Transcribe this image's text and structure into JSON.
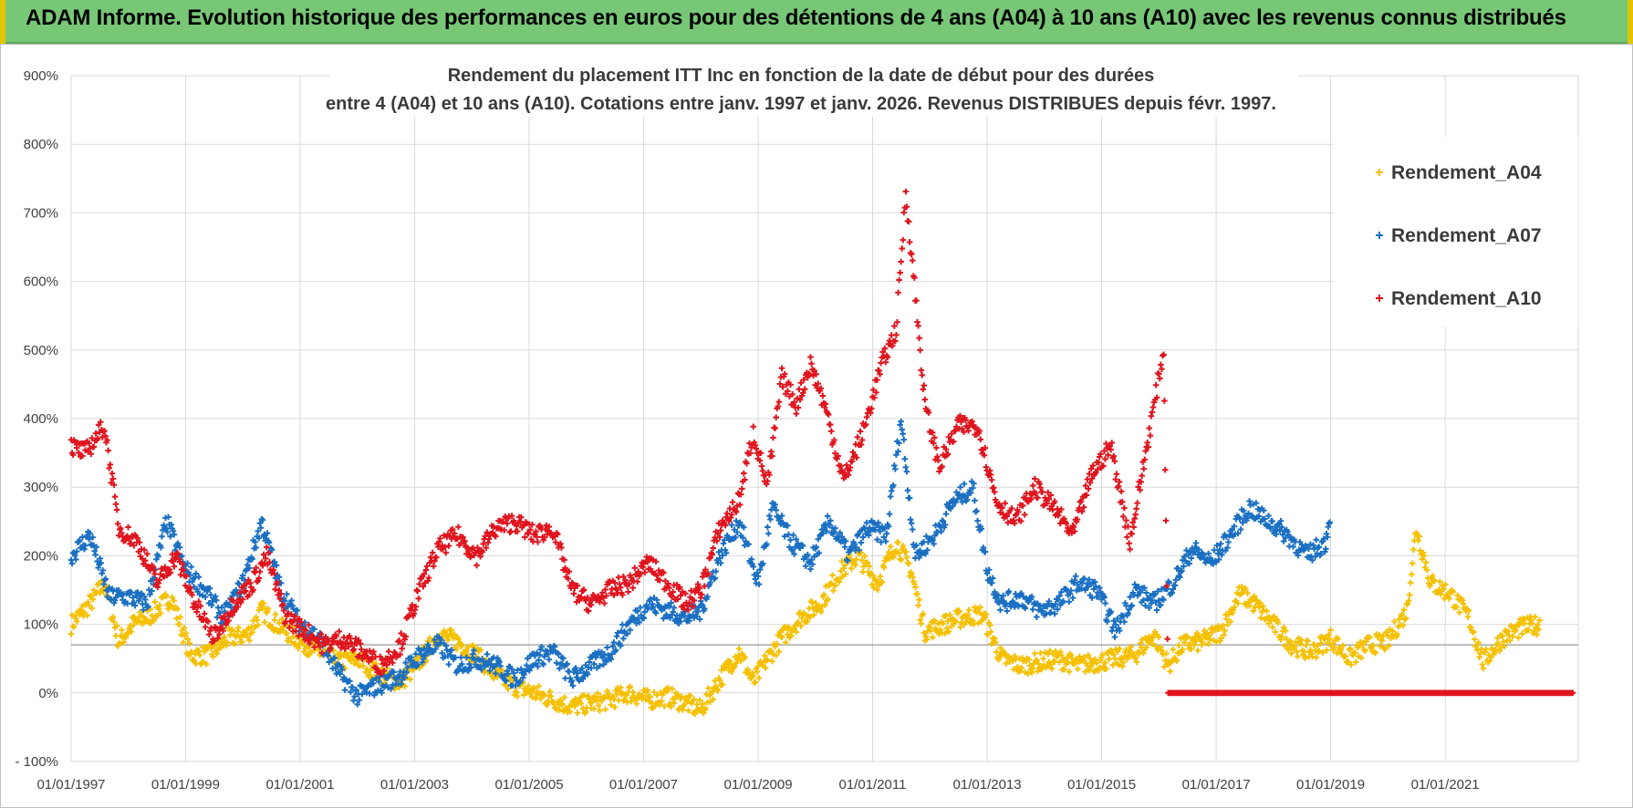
{
  "banner": {
    "text": "ADAM Informe. Evolution historique des performances en euros pour des détentions de 4 ans (A04) à 10 ans (A10) avec les revenus connus distribués"
  },
  "chart_data": {
    "type": "scatter",
    "title_lines": [
      "Rendement du placement ITT Inc en fonction de la date de début pour des durées",
      "entre 4 (A04) et 10 ans (A10). Cotations entre janv. 1997 et janv. 2026. Revenus DISTRIBUES depuis févr. 1997."
    ],
    "xlabel": "",
    "ylabel": "",
    "xlim": [
      "1997-01-01",
      "2023-04-30"
    ],
    "ylim": [
      -100,
      900
    ],
    "y_ticks": [
      "- 100%",
      "0%",
      "100%",
      "200%",
      "300%",
      "400%",
      "500%",
      "600%",
      "700%",
      "800%",
      "900%"
    ],
    "x_ticks": [
      "01/01/1997",
      "01/01/1999",
      "01/01/2001",
      "01/01/2003",
      "01/01/2005",
      "01/01/2007",
      "01/01/2009",
      "01/01/2011",
      "01/01/2013",
      "01/01/2015",
      "01/01/2017",
      "01/01/2019",
      "01/01/2021"
    ],
    "grid": true,
    "legend_position": "top-right",
    "marker": "+",
    "series": [
      {
        "name": "Rendement_A04",
        "color": "#f5c000",
        "points": [
          [
            "1997-01-01",
            100
          ],
          [
            "1997-05-01",
            130
          ],
          [
            "1997-08-01",
            160
          ],
          [
            "1997-11-01",
            75
          ],
          [
            "1998-02-01",
            100
          ],
          [
            "1998-06-01",
            115
          ],
          [
            "1998-10-01",
            140
          ],
          [
            "1999-02-01",
            55
          ],
          [
            "1999-06-01",
            55
          ],
          [
            "1999-10-01",
            80
          ],
          [
            "2000-02-01",
            85
          ],
          [
            "2000-05-01",
            120
          ],
          [
            "2000-09-01",
            95
          ],
          [
            "2001-01-01",
            75
          ],
          [
            "2001-05-01",
            60
          ],
          [
            "2001-09-01",
            45
          ],
          [
            "2002-01-01",
            50
          ],
          [
            "2002-05-01",
            30
          ],
          [
            "2002-10-01",
            15
          ],
          [
            "2003-02-01",
            45
          ],
          [
            "2003-06-01",
            85
          ],
          [
            "2003-10-01",
            75
          ],
          [
            "2004-02-01",
            55
          ],
          [
            "2004-06-01",
            25
          ],
          [
            "2004-10-01",
            10
          ],
          [
            "2005-02-01",
            0
          ],
          [
            "2005-06-01",
            -10
          ],
          [
            "2005-10-01",
            -20
          ],
          [
            "2006-02-01",
            -15
          ],
          [
            "2006-06-01",
            -10
          ],
          [
            "2006-10-01",
            0
          ],
          [
            "2007-02-01",
            -10
          ],
          [
            "2007-06-01",
            -5
          ],
          [
            "2007-10-01",
            -15
          ],
          [
            "2008-01-01",
            -25
          ],
          [
            "2008-05-01",
            20
          ],
          [
            "2008-09-01",
            60
          ],
          [
            "2008-12-01",
            15
          ],
          [
            "2009-03-01",
            50
          ],
          [
            "2009-06-01",
            80
          ],
          [
            "2009-10-01",
            110
          ],
          [
            "2010-02-01",
            130
          ],
          [
            "2010-06-01",
            175
          ],
          [
            "2010-10-01",
            200
          ],
          [
            "2011-02-01",
            160
          ],
          [
            "2011-06-01",
            220
          ],
          [
            "2011-09-01",
            180
          ],
          [
            "2011-12-01",
            90
          ],
          [
            "2012-04-01",
            100
          ],
          [
            "2012-08-01",
            110
          ],
          [
            "2012-12-01",
            115
          ],
          [
            "2013-04-01",
            50
          ],
          [
            "2013-08-01",
            40
          ],
          [
            "2013-12-01",
            45
          ],
          [
            "2014-04-01",
            50
          ],
          [
            "2014-08-01",
            40
          ],
          [
            "2014-12-01",
            45
          ],
          [
            "2015-04-01",
            50
          ],
          [
            "2015-08-01",
            55
          ],
          [
            "2015-12-01",
            85
          ],
          [
            "2016-03-01",
            40
          ],
          [
            "2016-06-01",
            70
          ],
          [
            "2016-10-01",
            75
          ],
          [
            "2017-02-01",
            90
          ],
          [
            "2017-06-01",
            145
          ],
          [
            "2017-09-01",
            130
          ],
          [
            "2018-01-01",
            100
          ],
          [
            "2018-05-01",
            70
          ],
          [
            "2018-09-01",
            60
          ],
          [
            "2019-01-01",
            80
          ],
          [
            "2019-05-01",
            50
          ],
          [
            "2019-09-01",
            70
          ],
          [
            "2020-01-01",
            75
          ],
          [
            "2020-05-01",
            120
          ],
          [
            "2020-07-01",
            240
          ],
          [
            "2020-10-01",
            160
          ],
          [
            "2021-02-01",
            145
          ],
          [
            "2021-06-01",
            110
          ],
          [
            "2021-09-01",
            45
          ],
          [
            "2022-01-01",
            80
          ],
          [
            "2022-05-01",
            95
          ],
          [
            "2022-09-01",
            100
          ]
        ]
      },
      {
        "name": "Rendement_A07",
        "color": "#1a6fc2",
        "points": [
          [
            "1997-01-01",
            200
          ],
          [
            "1997-05-01",
            230
          ],
          [
            "1997-09-01",
            140
          ],
          [
            "1998-01-01",
            140
          ],
          [
            "1998-05-01",
            130
          ],
          [
            "1998-09-01",
            250
          ],
          [
            "1999-01-01",
            180
          ],
          [
            "1999-05-01",
            150
          ],
          [
            "1999-09-01",
            110
          ],
          [
            "2000-01-01",
            160
          ],
          [
            "2000-05-01",
            250
          ],
          [
            "2000-09-01",
            150
          ],
          [
            "2001-01-01",
            100
          ],
          [
            "2001-05-01",
            80
          ],
          [
            "2001-09-01",
            30
          ],
          [
            "2002-01-01",
            -5
          ],
          [
            "2002-05-01",
            10
          ],
          [
            "2002-10-01",
            25
          ],
          [
            "2003-02-01",
            55
          ],
          [
            "2003-06-01",
            70
          ],
          [
            "2003-10-01",
            40
          ],
          [
            "2004-02-01",
            50
          ],
          [
            "2004-06-01",
            40
          ],
          [
            "2004-10-01",
            20
          ],
          [
            "2005-02-01",
            50
          ],
          [
            "2005-06-01",
            60
          ],
          [
            "2005-10-01",
            20
          ],
          [
            "2006-02-01",
            40
          ],
          [
            "2006-06-01",
            60
          ],
          [
            "2006-10-01",
            100
          ],
          [
            "2007-02-01",
            130
          ],
          [
            "2007-06-01",
            120
          ],
          [
            "2007-10-01",
            110
          ],
          [
            "2008-01-01",
            120
          ],
          [
            "2008-05-01",
            200
          ],
          [
            "2008-09-01",
            250
          ],
          [
            "2009-01-01",
            160
          ],
          [
            "2009-04-01",
            270
          ],
          [
            "2009-08-01",
            220
          ],
          [
            "2009-12-01",
            190
          ],
          [
            "2010-04-01",
            250
          ],
          [
            "2010-08-01",
            200
          ],
          [
            "2010-12-01",
            240
          ],
          [
            "2011-04-01",
            230
          ],
          [
            "2011-07-01",
            400
          ],
          [
            "2011-10-01",
            200
          ],
          [
            "2012-02-01",
            230
          ],
          [
            "2012-06-01",
            280
          ],
          [
            "2012-10-01",
            300
          ],
          [
            "2013-01-01",
            180
          ],
          [
            "2013-04-01",
            130
          ],
          [
            "2013-08-01",
            140
          ],
          [
            "2013-12-01",
            120
          ],
          [
            "2014-04-01",
            130
          ],
          [
            "2014-08-01",
            160
          ],
          [
            "2014-12-01",
            150
          ],
          [
            "2015-04-01",
            90
          ],
          [
            "2015-08-01",
            150
          ],
          [
            "2015-12-01",
            130
          ],
          [
            "2016-04-01",
            160
          ],
          [
            "2016-08-01",
            210
          ],
          [
            "2016-12-01",
            190
          ],
          [
            "2017-04-01",
            230
          ],
          [
            "2017-08-01",
            270
          ],
          [
            "2017-12-01",
            250
          ],
          [
            "2018-04-01",
            230
          ],
          [
            "2018-08-01",
            200
          ],
          [
            "2018-12-01",
            220
          ],
          [
            "2019-01-01",
            270
          ]
        ]
      },
      {
        "name": "Rendement_A10",
        "color": "#e0141e",
        "points": [
          [
            "1997-01-01",
            360
          ],
          [
            "1997-04-01",
            350
          ],
          [
            "1997-08-01",
            390
          ],
          [
            "1997-11-01",
            240
          ],
          [
            "1998-03-01",
            220
          ],
          [
            "1998-07-01",
            160
          ],
          [
            "1998-11-01",
            200
          ],
          [
            "1999-03-01",
            130
          ],
          [
            "1999-07-01",
            80
          ],
          [
            "1999-11-01",
            130
          ],
          [
            "2000-03-01",
            160
          ],
          [
            "2000-06-01",
            200
          ],
          [
            "2000-10-01",
            110
          ],
          [
            "2001-02-01",
            90
          ],
          [
            "2001-06-01",
            70
          ],
          [
            "2001-10-01",
            80
          ],
          [
            "2002-02-01",
            60
          ],
          [
            "2002-06-01",
            40
          ],
          [
            "2002-10-01",
            70
          ],
          [
            "2003-02-01",
            150
          ],
          [
            "2003-06-01",
            210
          ],
          [
            "2003-10-01",
            230
          ],
          [
            "2004-02-01",
            200
          ],
          [
            "2004-06-01",
            240
          ],
          [
            "2004-10-01",
            250
          ],
          [
            "2005-02-01",
            230
          ],
          [
            "2005-06-01",
            240
          ],
          [
            "2005-10-01",
            150
          ],
          [
            "2006-02-01",
            130
          ],
          [
            "2006-06-01",
            150
          ],
          [
            "2006-10-01",
            160
          ],
          [
            "2007-02-01",
            190
          ],
          [
            "2007-06-01",
            160
          ],
          [
            "2007-10-01",
            130
          ],
          [
            "2008-01-01",
            150
          ],
          [
            "2008-05-01",
            240
          ],
          [
            "2008-09-01",
            280
          ],
          [
            "2008-12-01",
            380
          ],
          [
            "2009-03-01",
            300
          ],
          [
            "2009-06-01",
            460
          ],
          [
            "2009-09-01",
            420
          ],
          [
            "2009-12-01",
            480
          ],
          [
            "2010-03-01",
            420
          ],
          [
            "2010-07-01",
            310
          ],
          [
            "2010-11-01",
            380
          ],
          [
            "2011-03-01",
            480
          ],
          [
            "2011-06-01",
            530
          ],
          [
            "2011-08-01",
            730
          ],
          [
            "2011-10-01",
            580
          ],
          [
            "2011-12-01",
            420
          ],
          [
            "2012-03-01",
            330
          ],
          [
            "2012-07-01",
            390
          ],
          [
            "2012-11-01",
            390
          ],
          [
            "2013-03-01",
            280
          ],
          [
            "2013-07-01",
            250
          ],
          [
            "2013-11-01",
            300
          ],
          [
            "2014-03-01",
            270
          ],
          [
            "2014-07-01",
            230
          ],
          [
            "2014-11-01",
            320
          ],
          [
            "2015-03-01",
            360
          ],
          [
            "2015-07-01",
            220
          ],
          [
            "2015-11-01",
            380
          ],
          [
            "2016-02-01",
            500
          ],
          [
            "2016-03-01",
            0
          ],
          [
            "2017-06-01",
            0
          ],
          [
            "2019-01-01",
            0
          ],
          [
            "2021-01-01",
            0
          ],
          [
            "2023-04-01",
            0
          ]
        ]
      }
    ]
  }
}
